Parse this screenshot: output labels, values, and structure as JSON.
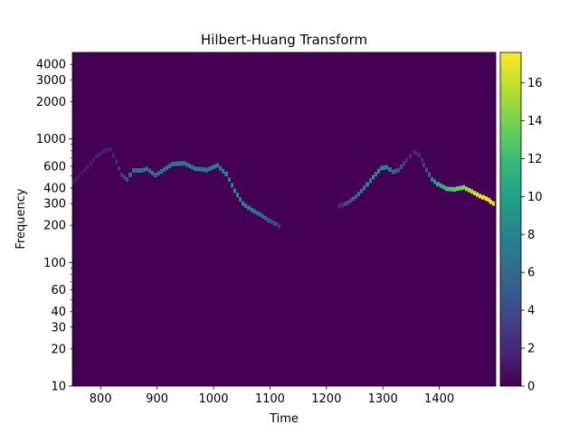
{
  "chart_data": {
    "type": "heatmap",
    "title": "Hilbert-Huang Transform",
    "xlabel": "Time",
    "ylabel": "Frequency",
    "xlim": [
      750,
      1500
    ],
    "ylim": [
      10,
      5000
    ],
    "yscale": "log",
    "grid": false,
    "background_value": 0,
    "x_ticks": [
      800,
      900,
      1000,
      1100,
      1200,
      1300,
      1400
    ],
    "x_tick_labels": [
      "800",
      "900",
      "1000",
      "1100",
      "1200",
      "1300",
      "1400"
    ],
    "y_ticks": [
      10,
      20,
      30,
      40,
      60,
      100,
      200,
      300,
      400,
      600,
      1000,
      2000,
      3000,
      4000
    ],
    "y_tick_labels": [
      "10",
      "20",
      "30",
      "40",
      "60",
      "100",
      "200",
      "300",
      "400",
      "600",
      "1000",
      "2000",
      "3000",
      "4000"
    ],
    "colormap": "viridis",
    "colorbar": {
      "range": [
        0,
        17.6
      ],
      "ticks": [
        0,
        2,
        4,
        6,
        8,
        10,
        12,
        14,
        16
      ],
      "tick_labels": [
        "0",
        "2",
        "4",
        "6",
        "8",
        "10",
        "12",
        "14",
        "16"
      ],
      "colors": [
        "#440154",
        "#482878",
        "#3e4a89",
        "#31688e",
        "#26828e",
        "#1f9e89",
        "#35b779",
        "#6ece58",
        "#b5de2b",
        "#fde725"
      ]
    },
    "series": [
      {
        "points": [
          {
            "time": 750,
            "frequency": 450,
            "value": 1.2
          },
          {
            "time": 770,
            "frequency": 560,
            "value": 1.3
          },
          {
            "time": 790,
            "frequency": 720,
            "value": 1.5
          },
          {
            "time": 805,
            "frequency": 800,
            "value": 1.5
          },
          {
            "time": 815,
            "frequency": 820,
            "value": 1.4
          },
          {
            "time": 825,
            "frequency": 650,
            "value": 2.0
          },
          {
            "time": 835,
            "frequency": 510,
            "value": 3.0
          },
          {
            "time": 845,
            "frequency": 470,
            "value": 4.5
          },
          {
            "time": 855,
            "frequency": 555,
            "value": 6.0
          },
          {
            "time": 870,
            "frequency": 555,
            "value": 6.5
          },
          {
            "time": 880,
            "frequency": 570,
            "value": 6.5
          },
          {
            "time": 895,
            "frequency": 510,
            "value": 6.0
          },
          {
            "time": 910,
            "frequency": 565,
            "value": 6.5
          },
          {
            "time": 925,
            "frequency": 625,
            "value": 7.0
          },
          {
            "time": 945,
            "frequency": 635,
            "value": 7.0
          },
          {
            "time": 965,
            "frequency": 575,
            "value": 7.0
          },
          {
            "time": 985,
            "frequency": 560,
            "value": 7.0
          },
          {
            "time": 1005,
            "frequency": 610,
            "value": 7.5
          },
          {
            "time": 1020,
            "frequency": 520,
            "value": 8.0
          },
          {
            "time": 1035,
            "frequency": 380,
            "value": 8.5
          },
          {
            "time": 1050,
            "frequency": 300,
            "value": 8.0
          },
          {
            "time": 1065,
            "frequency": 265,
            "value": 7.0
          },
          {
            "time": 1080,
            "frequency": 245,
            "value": 6.5
          },
          {
            "time": 1095,
            "frequency": 220,
            "value": 5.0
          },
          {
            "time": 1108,
            "frequency": 205,
            "value": 3.5
          },
          {
            "time": 1118,
            "frequency": 190,
            "value": 2.5
          }
        ]
      },
      {
        "points": [
          {
            "time": 1220,
            "frequency": 285,
            "value": 2.0
          },
          {
            "time": 1235,
            "frequency": 305,
            "value": 4.0
          },
          {
            "time": 1250,
            "frequency": 340,
            "value": 6.0
          },
          {
            "time": 1265,
            "frequency": 400,
            "value": 7.5
          },
          {
            "time": 1280,
            "frequency": 490,
            "value": 8.5
          },
          {
            "time": 1295,
            "frequency": 580,
            "value": 8.5
          },
          {
            "time": 1305,
            "frequency": 590,
            "value": 8.0
          },
          {
            "time": 1315,
            "frequency": 540,
            "value": 6.0
          },
          {
            "time": 1325,
            "frequency": 560,
            "value": 4.5
          },
          {
            "time": 1340,
            "frequency": 670,
            "value": 2.5
          },
          {
            "time": 1352,
            "frequency": 780,
            "value": 1.8
          },
          {
            "time": 1362,
            "frequency": 740,
            "value": 2.0
          },
          {
            "time": 1375,
            "frequency": 560,
            "value": 4.0
          },
          {
            "time": 1385,
            "frequency": 470,
            "value": 8.0
          },
          {
            "time": 1395,
            "frequency": 430,
            "value": 10.5
          },
          {
            "time": 1410,
            "frequency": 395,
            "value": 12.0
          },
          {
            "time": 1425,
            "frequency": 390,
            "value": 13.0
          },
          {
            "time": 1440,
            "frequency": 405,
            "value": 14.0
          },
          {
            "time": 1455,
            "frequency": 375,
            "value": 15.5
          },
          {
            "time": 1470,
            "frequency": 345,
            "value": 17.0
          },
          {
            "time": 1485,
            "frequency": 320,
            "value": 17.0
          },
          {
            "time": 1498,
            "frequency": 290,
            "value": 16.5
          }
        ]
      }
    ]
  }
}
